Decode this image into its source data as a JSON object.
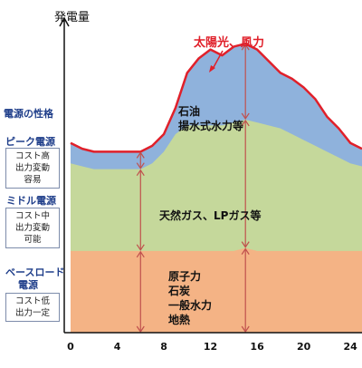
{
  "chart_data": {
    "type": "area",
    "ylabel": "発電量",
    "x_ticks": [
      0,
      4,
      8,
      12,
      16,
      20,
      24
    ],
    "x_range": [
      0,
      25
    ],
    "y_range": [
      0,
      100
    ],
    "hours": [
      0,
      1,
      2,
      3,
      4,
      5,
      6,
      7,
      8,
      9,
      10,
      11,
      12,
      13,
      14,
      15,
      16,
      17,
      18,
      19,
      20,
      21,
      22,
      23,
      24,
      25
    ],
    "bands": [
      {
        "key": "base",
        "color": "#f4b385",
        "values": [
          28,
          28,
          28,
          28,
          28,
          28,
          28,
          28,
          28,
          28,
          28,
          28,
          28,
          28,
          28,
          29,
          28,
          28,
          28,
          28,
          28,
          28,
          28,
          28,
          28,
          28
        ]
      },
      {
        "key": "middle",
        "color": "#c5d89b",
        "values": [
          58,
          57,
          56,
          56,
          56,
          56,
          56,
          58,
          62,
          68,
          71,
          71,
          71,
          71,
          72,
          73,
          72,
          71,
          70,
          68,
          66,
          64,
          62,
          60,
          58,
          57
        ]
      },
      {
        "key": "peak",
        "color": "#8fb2dc",
        "values": [
          65,
          63,
          62,
          62,
          62,
          62,
          62,
          64,
          68,
          77,
          89,
          94,
          97,
          95,
          98,
          99,
          97,
          93,
          89,
          87,
          84,
          80,
          74,
          70,
          65,
          63
        ]
      }
    ],
    "series": [
      {
        "name": "太陽光、風力",
        "color": "#e0202a"
      }
    ],
    "band_labels": {
      "peak": [
        "石油",
        "揚水式水力等"
      ],
      "middle": [
        "天然ガス、LPガス等"
      ],
      "base": [
        "原子力",
        "石炭",
        "一般水力",
        "地熱"
      ]
    },
    "arrows_at": [
      6,
      15
    ],
    "arrow_color": "#c0504d"
  },
  "sidebar": {
    "title": "電源の性格",
    "tiers": [
      {
        "name": "ピーク電源",
        "desc": [
          "コスト高",
          "出力変動",
          "容易"
        ]
      },
      {
        "name": "ミドル電源",
        "desc": [
          "コスト中",
          "出力変動",
          "可能"
        ]
      },
      {
        "name": "ベースロード",
        "name2": "電源",
        "desc": [
          "コスト低",
          "出力一定"
        ]
      }
    ]
  }
}
